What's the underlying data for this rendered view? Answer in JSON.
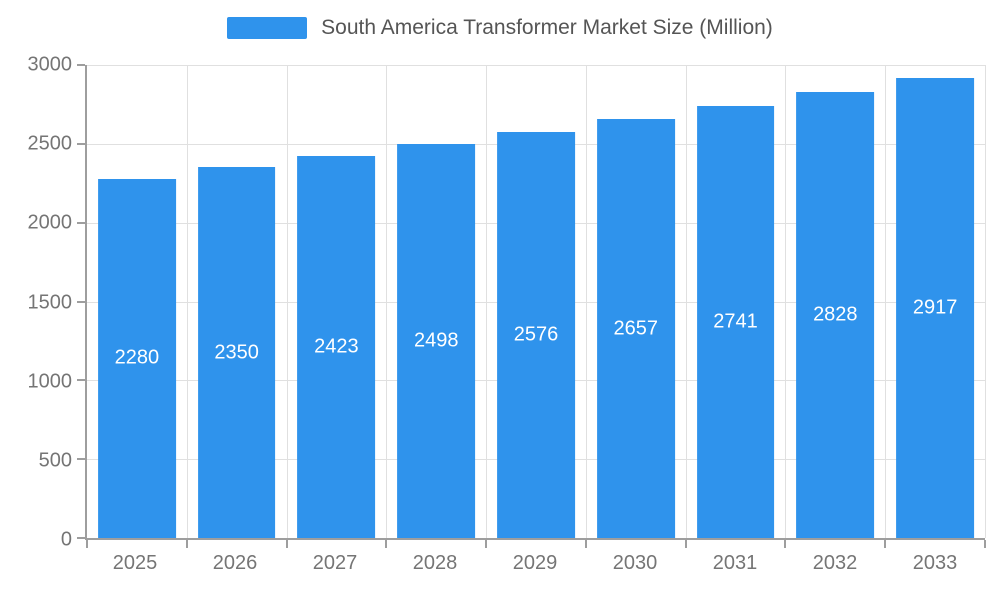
{
  "legend": {
    "label": "South America Transformer Market Size (Million)"
  },
  "colors": {
    "bar": "#2f93ec",
    "grid": "#e0e0e0",
    "axis": "#9e9e9e",
    "tick_label": "#757575",
    "value_label": "#ffffff",
    "legend_text": "#555555",
    "background": "#ffffff"
  },
  "chart_data": {
    "type": "bar",
    "title": "South America Transformer Market Size (Million)",
    "categories": [
      "2025",
      "2026",
      "2027",
      "2028",
      "2029",
      "2030",
      "2031",
      "2032",
      "2033"
    ],
    "values": [
      2280,
      2350,
      2423,
      2498,
      2576,
      2657,
      2741,
      2828,
      2917
    ],
    "xlabel": "",
    "ylabel": "",
    "ylim": [
      0,
      3000
    ],
    "yticks": [
      0,
      500,
      1000,
      1500,
      2000,
      2500,
      3000
    ],
    "grid": true,
    "legend_position": "top",
    "value_labels": "inside-center"
  }
}
